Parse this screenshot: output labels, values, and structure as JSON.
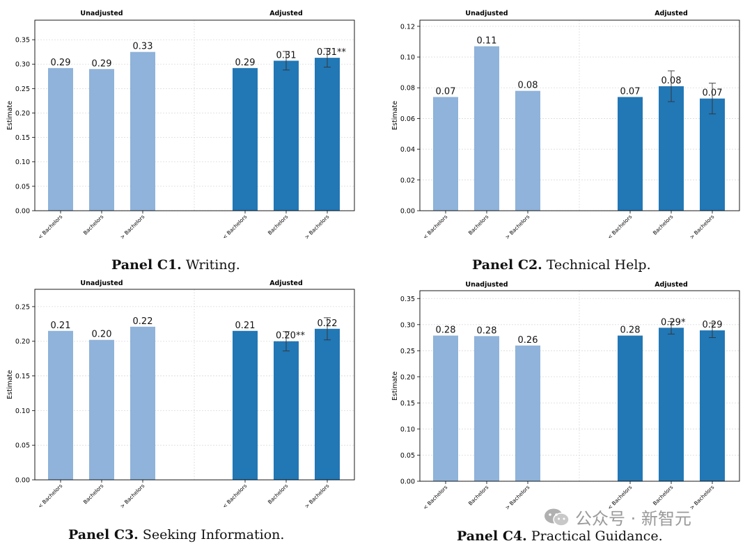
{
  "colors": {
    "unadjusted": "#8fb3da",
    "adjusted": "#2277b5",
    "grid": "#d9d9d9",
    "errorbar": "#333333"
  },
  "watermark": {
    "text": "公众号 · 新智元",
    "icon": "wechat-icon"
  },
  "chart_data": [
    {
      "type": "bar",
      "panel_label": "Panel C1.",
      "panel_title": "Writing.",
      "groups": [
        "Unadjusted",
        "Adjusted"
      ],
      "categories": [
        "< Bachelors",
        "Bachelors",
        "> Bachelors"
      ],
      "ylabel": "Estimate",
      "ylim": [
        0,
        0.39
      ],
      "yticks": [
        "0.00",
        "0.05",
        "0.10",
        "0.15",
        "0.20",
        "0.25",
        "0.30",
        "0.35"
      ],
      "series": [
        {
          "name": "Unadjusted",
          "values": [
            0.292,
            0.29,
            0.325
          ],
          "labels": [
            "0.29",
            "0.29",
            "0.33"
          ],
          "errors": [
            null,
            null,
            null
          ]
        },
        {
          "name": "Adjusted",
          "values": [
            0.292,
            0.307,
            0.313
          ],
          "labels": [
            "0.29",
            "0.31",
            "0.31**"
          ],
          "errors": [
            null,
            0.019,
            0.019
          ]
        }
      ]
    },
    {
      "type": "bar",
      "panel_label": "Panel C2.",
      "panel_title": "Technical Help.",
      "groups": [
        "Unadjusted",
        "Adjusted"
      ],
      "categories": [
        "< Bachelors",
        "Bachelors",
        "> Bachelors"
      ],
      "ylabel": "Estimate",
      "ylim": [
        0,
        0.124
      ],
      "yticks": [
        "0.00",
        "0.02",
        "0.04",
        "0.06",
        "0.08",
        "0.10",
        "0.12"
      ],
      "series": [
        {
          "name": "Unadjusted",
          "values": [
            0.074,
            0.107,
            0.078
          ],
          "labels": [
            "0.07",
            "0.11",
            "0.08"
          ],
          "errors": [
            null,
            null,
            null
          ]
        },
        {
          "name": "Adjusted",
          "values": [
            0.074,
            0.081,
            0.073
          ],
          "labels": [
            "0.07",
            "0.08",
            "0.07"
          ],
          "errors": [
            null,
            0.01,
            0.01
          ]
        }
      ]
    },
    {
      "type": "bar",
      "panel_label": "Panel C3.",
      "panel_title": "Seeking Information.",
      "groups": [
        "Unadjusted",
        "Adjusted"
      ],
      "categories": [
        "< Bachelors",
        "Bachelors",
        "> Bachelors"
      ],
      "ylabel": "Estimate",
      "ylim": [
        0,
        0.275
      ],
      "yticks": [
        "0.00",
        "0.05",
        "0.10",
        "0.15",
        "0.20",
        "0.25"
      ],
      "series": [
        {
          "name": "Unadjusted",
          "values": [
            0.215,
            0.202,
            0.221
          ],
          "labels": [
            "0.21",
            "0.20",
            "0.22"
          ],
          "errors": [
            null,
            null,
            null
          ]
        },
        {
          "name": "Adjusted",
          "values": [
            0.215,
            0.2,
            0.218
          ],
          "labels": [
            "0.21",
            "0.20**",
            "0.22"
          ],
          "errors": [
            null,
            0.014,
            0.016
          ]
        }
      ]
    },
    {
      "type": "bar",
      "panel_label": "Panel C4.",
      "panel_title": "Practical Guidance.",
      "groups": [
        "Unadjusted",
        "Adjusted"
      ],
      "categories": [
        "< Bachelors",
        "Bachelors",
        "> Bachelors"
      ],
      "ylabel": "Estimate",
      "ylim": [
        0,
        0.365
      ],
      "yticks": [
        "0.00",
        "0.05",
        "0.10",
        "0.15",
        "0.20",
        "0.25",
        "0.30",
        "0.35"
      ],
      "series": [
        {
          "name": "Unadjusted",
          "values": [
            0.279,
            0.278,
            0.26
          ],
          "labels": [
            "0.28",
            "0.28",
            "0.26"
          ],
          "errors": [
            null,
            null,
            null
          ]
        },
        {
          "name": "Adjusted",
          "values": [
            0.279,
            0.294,
            0.289
          ],
          "labels": [
            "0.28",
            "0.29*",
            "0.29"
          ],
          "errors": [
            null,
            0.012,
            0.014
          ]
        }
      ]
    }
  ]
}
